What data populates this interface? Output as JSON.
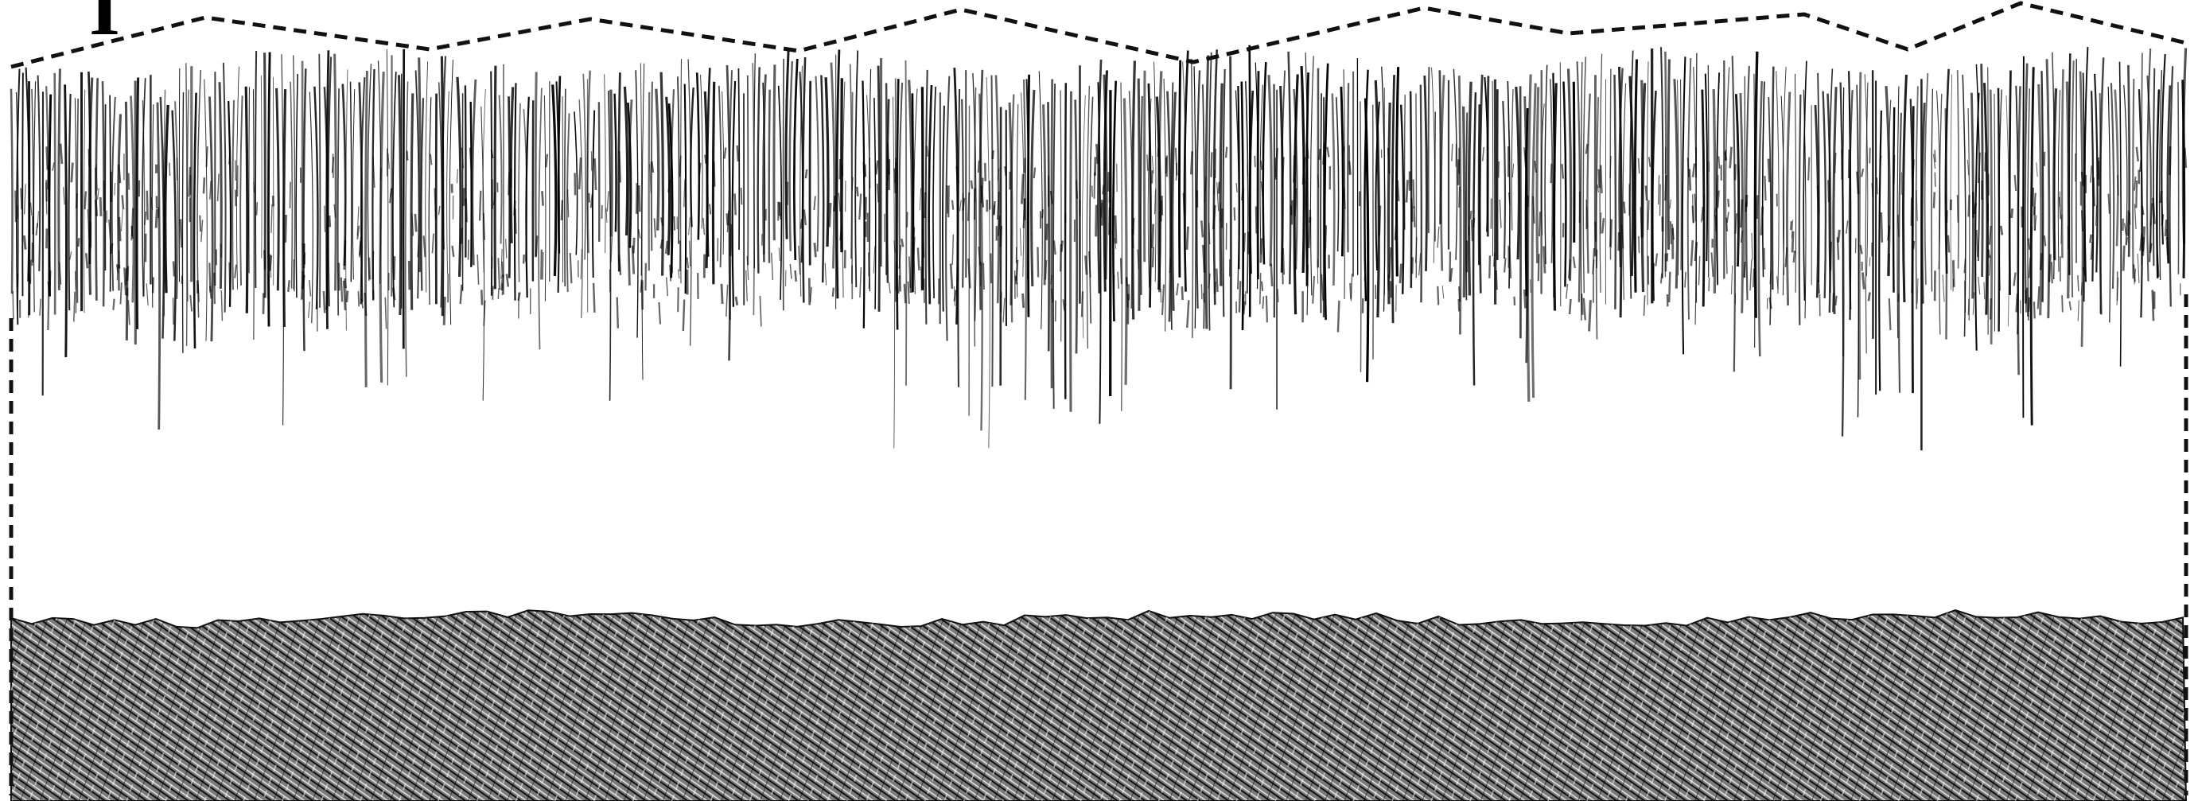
{
  "figure": {
    "panel_label": "I"
  },
  "style": {
    "ink_color": "#000000",
    "outline_color": "#111111",
    "fill_color": "#444444",
    "background_color": "#ffffff"
  },
  "icons": {
    "upper_layer": "fringed-fiber-array-icon",
    "lower_layer": "hatched-substrate-icon",
    "outline": "dashed-outline-icon"
  }
}
